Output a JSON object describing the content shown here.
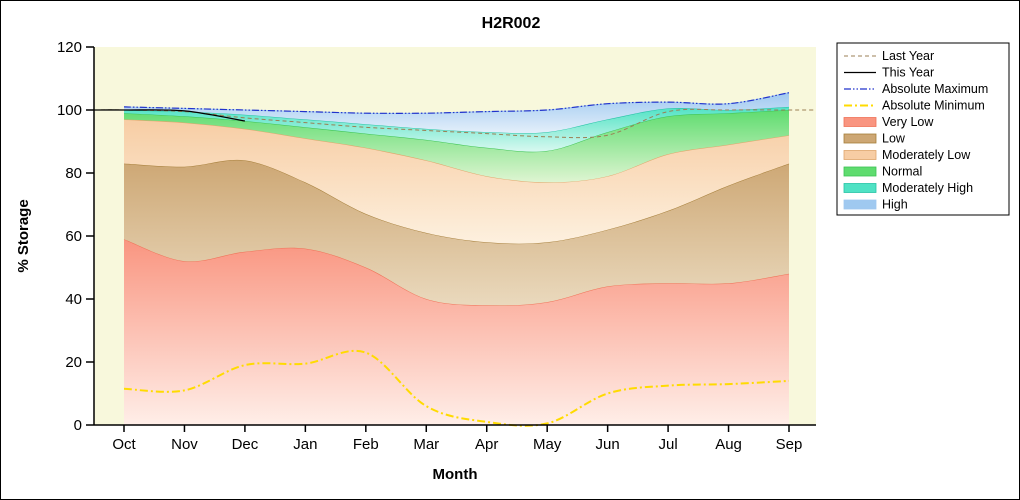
{
  "title": "H2R002",
  "chart_data": {
    "type": "area",
    "title": "H2R002",
    "xlabel": "Month",
    "ylabel": "% Storage",
    "categories": [
      "Oct",
      "Nov",
      "Dec",
      "Jan",
      "Feb",
      "Mar",
      "Apr",
      "May",
      "Jun",
      "Jul",
      "Aug",
      "Sep"
    ],
    "ylim": [
      0,
      120
    ],
    "yticks": [
      0,
      20,
      40,
      60,
      80,
      100,
      120
    ],
    "plot_bg": "#f8f8dc",
    "grid": false,
    "legend_position": "right-outside",
    "bands": [
      {
        "name": "Very Low",
        "color": "#f99580",
        "light": "#ffeee8",
        "line": "#ef7257",
        "top": [
          59,
          52,
          55,
          56,
          50,
          40,
          38,
          39,
          44,
          45,
          45,
          48
        ]
      },
      {
        "name": "Low",
        "color": "#cda774",
        "light": "#ead9bd",
        "line": "#a67f3a",
        "top": [
          83,
          82,
          84,
          77,
          67,
          61,
          58,
          58,
          62,
          68,
          76,
          83
        ]
      },
      {
        "name": "Moderately Low",
        "color": "#f7cda4",
        "light": "#fdf0de",
        "line": "#dfa66b",
        "top": [
          97,
          96,
          94,
          91,
          88,
          84,
          79,
          77,
          79,
          86,
          89,
          92
        ]
      },
      {
        "name": "Normal",
        "color": "#5fdc6f",
        "light": "#dff5d2",
        "line": "#3cc353",
        "top": [
          99,
          98,
          96.5,
          94.5,
          92.5,
          90.5,
          88,
          87,
          93,
          98,
          99,
          100
        ]
      },
      {
        "name": "Moderately High",
        "color": "#4fe2c4",
        "light": "#d7f8ef",
        "line": "#26c3a6",
        "top": [
          100,
          99.5,
          98.5,
          97,
          95.5,
          94,
          93,
          93,
          97,
          100.5,
          100,
          101
        ]
      },
      {
        "name": "High",
        "color": "#9fc9f0",
        "light": "#e2eefa",
        "line": "#9fc9f0",
        "top": [
          101,
          100.5,
          100,
          99.5,
          99,
          99,
          99.5,
          100,
          102,
          102.5,
          102,
          105.5
        ]
      }
    ],
    "lines": [
      {
        "name": "Last Year",
        "color": "#9b7f55",
        "dash": "4 3",
        "width": 1,
        "extend": "both",
        "values": [
          100,
          99.5,
          97.5,
          96,
          94.5,
          93.5,
          92.5,
          91.5,
          92,
          99.5,
          100,
          100
        ]
      },
      {
        "name": "This Year",
        "color": "#000000",
        "dash": "",
        "width": 1.3,
        "extend": "left",
        "values": [
          100,
          99.7,
          96.5,
          null,
          null,
          null,
          null,
          null,
          null,
          null,
          null,
          null
        ]
      },
      {
        "name": "Absolute Maximum",
        "color": "#2233cc",
        "dash": "7 2 1.5 2 1.5 2",
        "width": 1.2,
        "extend": "none",
        "values": [
          101,
          100.5,
          100,
          99.5,
          99,
          99,
          99.5,
          100,
          102,
          102.5,
          102,
          105.5
        ]
      },
      {
        "name": "Absolute Minimum",
        "color": "#ffdb00",
        "dash": "8 3 2 3",
        "width": 2,
        "extend": "none",
        "values": [
          11.5,
          11,
          19,
          19.5,
          23,
          6,
          1,
          0.5,
          10,
          12.5,
          13,
          14
        ]
      }
    ],
    "legend_entries": [
      "Last Year",
      "This Year",
      "Absolute Maximum",
      "Absolute Minimum",
      "Very Low",
      "Low",
      "Moderately Low",
      "Normal",
      "Moderately High",
      "High"
    ]
  }
}
